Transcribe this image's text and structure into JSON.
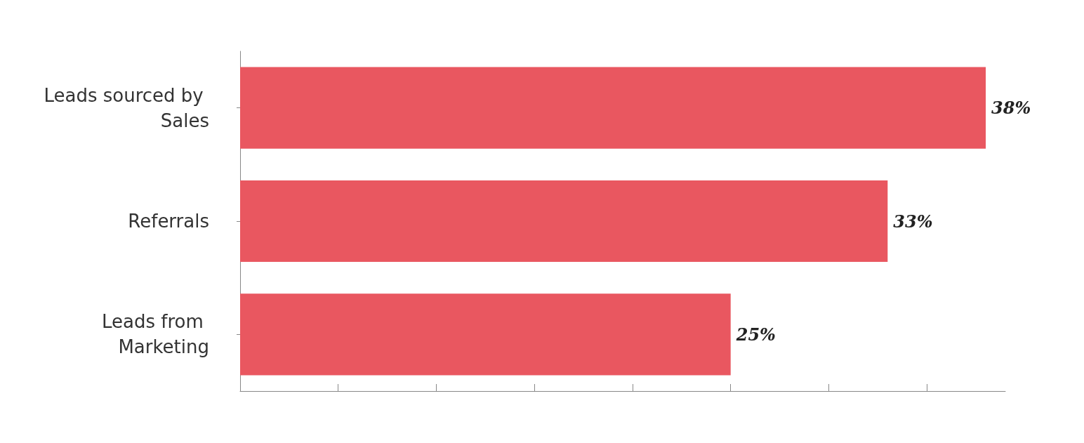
{
  "chart_data": {
    "type": "bar",
    "orientation": "horizontal",
    "categories": [
      "Leads sourced by Sales",
      "Referrals",
      "Leads from Marketing"
    ],
    "values": [
      38,
      33,
      25
    ],
    "color": "#e95760",
    "value_labels": [
      "38%",
      "33%",
      "25%"
    ],
    "xlim": [
      0,
      39
    ],
    "xticks": [
      {
        "value": 0,
        "label": null
      },
      {
        "value": 5,
        "label": null
      },
      {
        "value": 10,
        "label": null
      },
      {
        "value": 15,
        "label": null
      },
      {
        "value": 20,
        "label": null
      },
      {
        "value": 25,
        "label": null
      },
      {
        "value": 30,
        "label": null
      },
      {
        "value": 35,
        "label": null
      }
    ],
    "tick_labels": "y",
    "grid": false
  }
}
